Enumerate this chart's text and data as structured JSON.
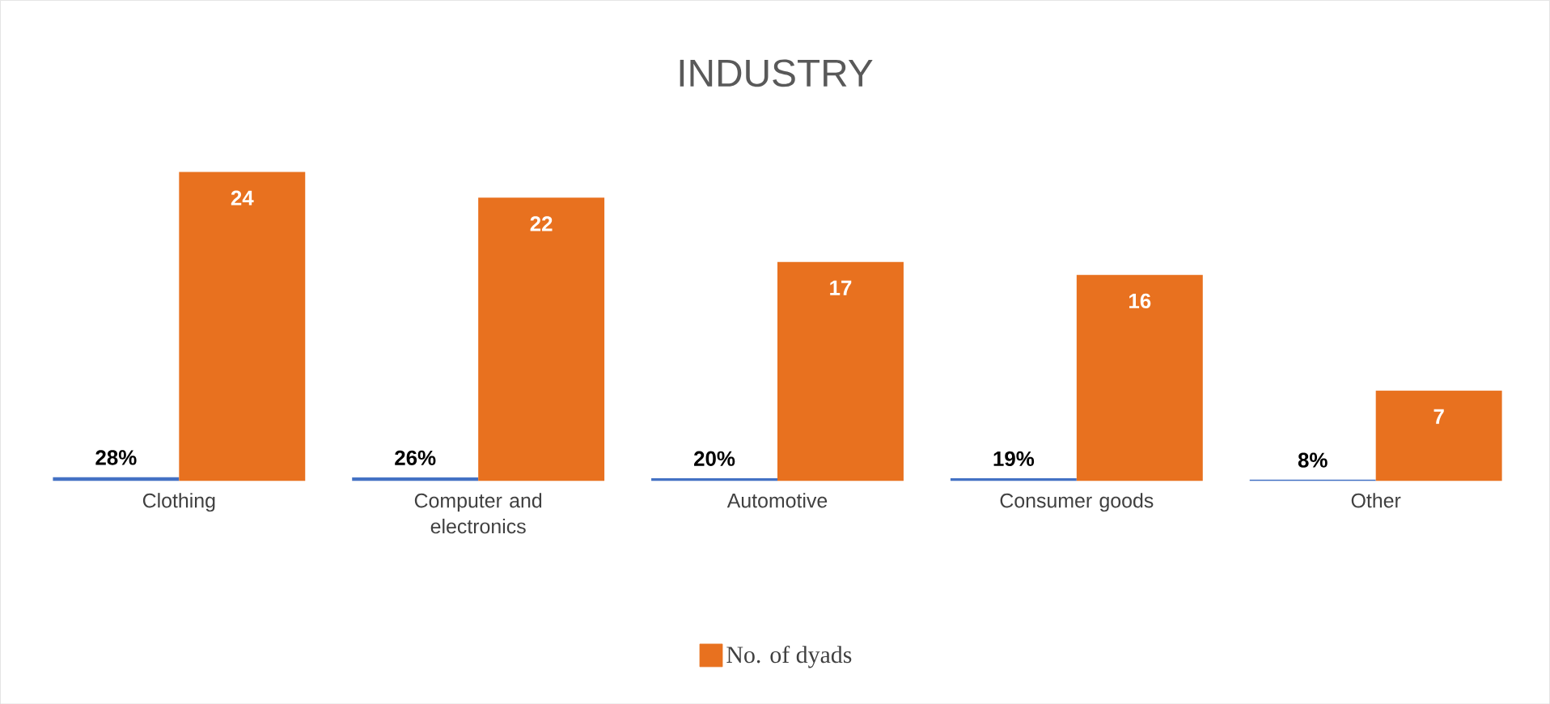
{
  "chart_data": {
    "type": "bar",
    "title": "INDUSTRY",
    "categories": [
      "Clothing",
      "Computer and electronics",
      "Automotive",
      "Consumer goods",
      "Other"
    ],
    "series": [
      {
        "color": "#4472c4",
        "values": [
          0.28,
          0.26,
          0.2,
          0.19,
          0.08
        ],
        "value_labels": [
          "28%",
          "26%",
          "20%",
          "19%",
          "8%"
        ]
      },
      {
        "name": "No. of dyads",
        "color": "#e8711f",
        "values": [
          24,
          22,
          17,
          16,
          7
        ],
        "value_labels": [
          "24",
          "22",
          "17",
          "16",
          "7"
        ]
      }
    ],
    "legend": "bottom"
  }
}
